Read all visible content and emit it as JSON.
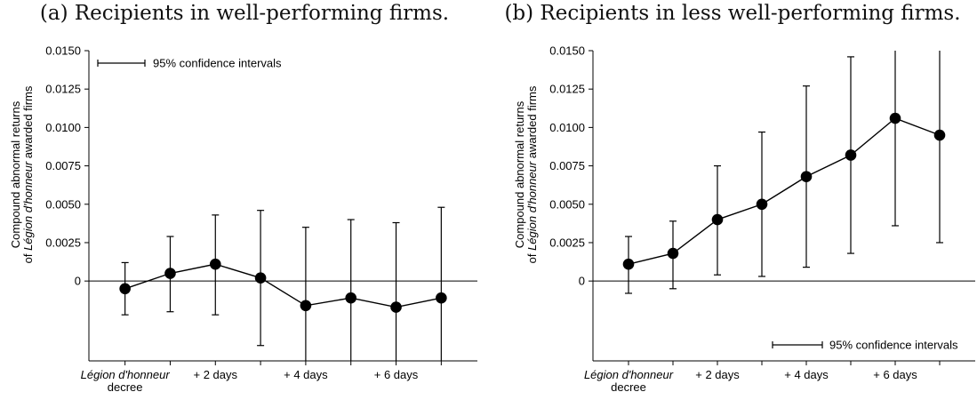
{
  "chart_data": [
    {
      "type": "line",
      "title": "(a) Recipients in well-performing firms.",
      "ylabel_line1": "Compound abnormal returns",
      "ylabel_line2_prefix": "of ",
      "ylabel_line2_italic": "Légion d'honneur",
      "ylabel_line2_suffix": " awarded firms",
      "ylim": [
        -0.0052,
        0.015
      ],
      "yticks": [
        0,
        0.0025,
        0.005,
        0.0075,
        0.01,
        0.0125,
        0.015
      ],
      "ytick_labels": [
        "0",
        "0.0025",
        "0.0050",
        "0.0075",
        "0.0100",
        "0.0125",
        "0.0150"
      ],
      "x": [
        0,
        1,
        2,
        3,
        4,
        5,
        6,
        7
      ],
      "xlim": [
        -0.8,
        7.8
      ],
      "xtick_labels": [
        {
          "x": 0,
          "line1": "Légion d'honneur",
          "line1_italic": true,
          "line2": "decree"
        },
        {
          "x": 2,
          "line1": "+ 2 days",
          "line1_italic": false,
          "line2": ""
        },
        {
          "x": 4,
          "line1": "+ 4 days",
          "line1_italic": false,
          "line2": ""
        },
        {
          "x": 6,
          "line1": "+ 6 days",
          "line1_italic": false,
          "line2": ""
        }
      ],
      "values": [
        -0.0005,
        0.0005,
        0.0011,
        0.0002,
        -0.0016,
        -0.0011,
        -0.0017,
        -0.0011
      ],
      "ci_low": [
        -0.0022,
        -0.002,
        -0.0022,
        -0.0042,
        -0.0052,
        -0.0052,
        -0.0052,
        -0.0052
      ],
      "ci_high": [
        0.0012,
        0.0029,
        0.0043,
        0.0046,
        0.0035,
        0.004,
        0.0038,
        0.0048
      ],
      "legend_text": "95% confidence intervals",
      "legend_position": "top-left",
      "grid": false
    },
    {
      "type": "line",
      "title": "(b) Recipients in less well-performing firms.",
      "ylabel_line1": "Compound abnormal returns",
      "ylabel_line2_prefix": "of ",
      "ylabel_line2_italic": "Légion d'honneur",
      "ylabel_line2_suffix": " awarded firms",
      "ylim": [
        -0.0052,
        0.015
      ],
      "yticks": [
        0,
        0.0025,
        0.005,
        0.0075,
        0.01,
        0.0125,
        0.015
      ],
      "ytick_labels": [
        "0",
        "0.0025",
        "0.0050",
        "0.0075",
        "0.0100",
        "0.0125",
        "0.0150"
      ],
      "x": [
        0,
        1,
        2,
        3,
        4,
        5,
        6,
        7
      ],
      "xlim": [
        -0.8,
        7.8
      ],
      "xtick_labels": [
        {
          "x": 0,
          "line1": "Légion d'honneur",
          "line1_italic": true,
          "line2": "decree"
        },
        {
          "x": 2,
          "line1": "+ 2 days",
          "line1_italic": false,
          "line2": ""
        },
        {
          "x": 4,
          "line1": "+ 4 days",
          "line1_italic": false,
          "line2": ""
        },
        {
          "x": 6,
          "line1": "+ 6 days",
          "line1_italic": false,
          "line2": ""
        }
      ],
      "values": [
        0.0011,
        0.0018,
        0.004,
        0.005,
        0.0068,
        0.0082,
        0.0106,
        0.0095
      ],
      "ci_low": [
        -0.0008,
        -0.0005,
        0.0004,
        0.0003,
        0.0009,
        0.0018,
        0.0036,
        0.0025
      ],
      "ci_high": [
        0.0029,
        0.0039,
        0.0075,
        0.0097,
        0.0127,
        0.0146,
        0.015,
        0.015
      ],
      "legend_text": "95% confidence intervals",
      "legend_position": "bottom-right",
      "grid": false
    }
  ]
}
